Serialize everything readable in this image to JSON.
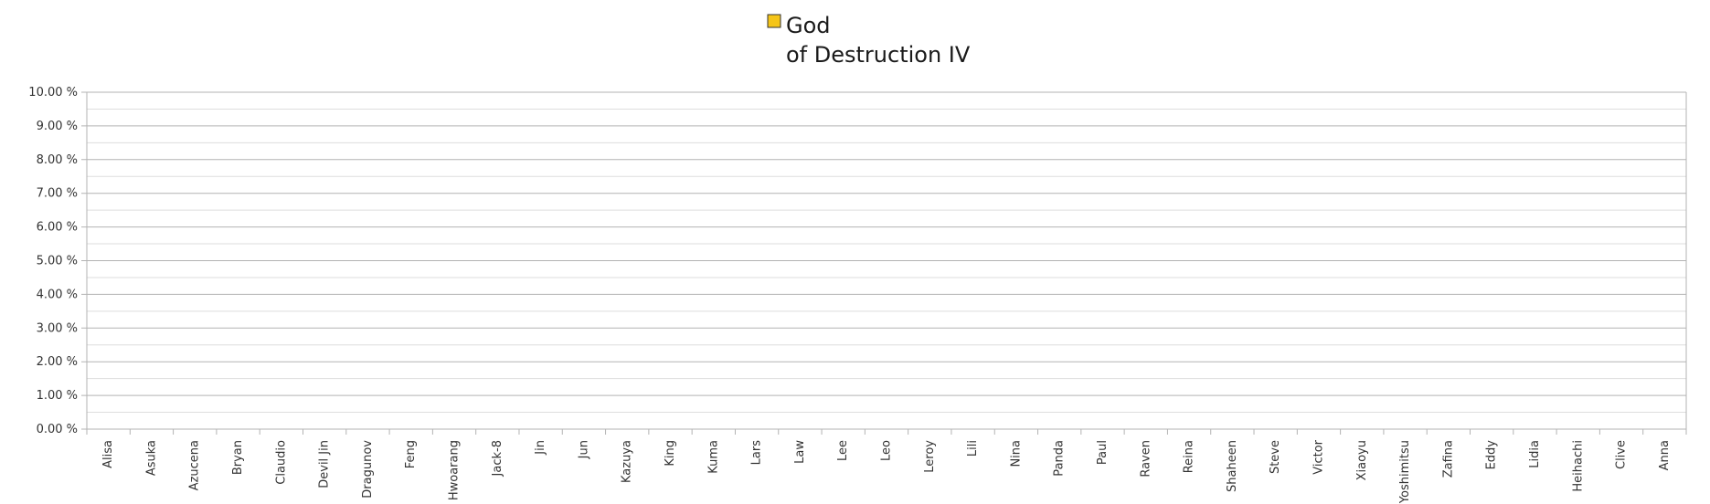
{
  "chart_data": {
    "type": "bar",
    "legend": {
      "position": "top",
      "entries": [
        {
          "name_line1": "God",
          "name_line2": "of Destruction IV",
          "color": "#f5c518"
        }
      ]
    },
    "series": [
      {
        "name": "God of Destruction IV",
        "color": "#f5c518",
        "values": [
          0,
          0,
          0,
          0,
          0,
          0,
          0,
          0,
          0,
          0,
          0,
          0,
          0,
          0,
          0,
          0,
          0,
          0,
          0,
          0,
          0,
          0,
          0,
          0,
          0,
          0,
          0,
          0,
          0,
          0,
          0,
          0,
          0,
          0,
          0,
          0,
          0
        ]
      }
    ],
    "categories": [
      "Alisa",
      "Asuka",
      "Azucena",
      "Bryan",
      "Claudio",
      "Devil Jin",
      "Dragunov",
      "Feng",
      "Hwoarang",
      "Jack-8",
      "Jin",
      "Jun",
      "Kazuya",
      "King",
      "Kuma",
      "Lars",
      "Law",
      "Lee",
      "Leo",
      "Leroy",
      "Lili",
      "Nina",
      "Panda",
      "Paul",
      "Raven",
      "Reina",
      "Shaheen",
      "Steve",
      "Victor",
      "Xiaoyu",
      "Yoshimitsu",
      "Zafina",
      "Eddy",
      "Lidia",
      "Heihachi",
      "Clive",
      "Anna"
    ],
    "y_ticks": [
      "0.00 %",
      "1.00 %",
      "2.00 %",
      "3.00 %",
      "4.00 %",
      "5.00 %",
      "6.00 %",
      "7.00 %",
      "8.00 %",
      "9.00 %",
      "10.00 %"
    ],
    "ylim": [
      0,
      10
    ],
    "y_unit": "%",
    "grid": true,
    "minor_grid": true,
    "colors": {
      "major_grid": "#b3b3b3",
      "minor_grid": "#dddddd",
      "axis": "#b3b3b3"
    }
  }
}
